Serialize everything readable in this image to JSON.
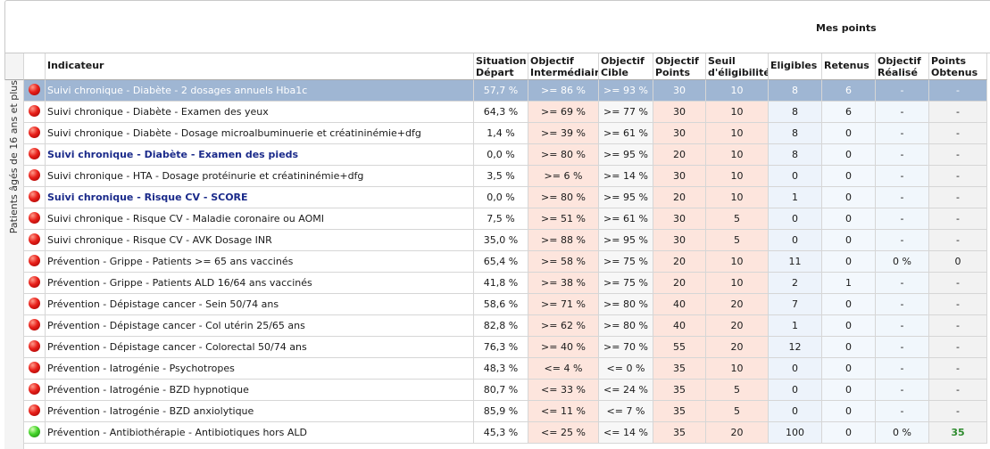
{
  "header": {
    "mes_points": "Mes points"
  },
  "columns": {
    "indicateur": "Indicateur",
    "situation": [
      "Situation",
      "Départ"
    ],
    "obj_inter": [
      "Objectif",
      "Intermédiaire"
    ],
    "obj_cible": [
      "Objectif",
      "Cible"
    ],
    "obj_points": [
      "Objectif",
      "Points"
    ],
    "seuil": [
      "Seuil",
      "d'éligibilité"
    ],
    "eligibles": "Eligibles",
    "retenus": "Retenus",
    "obj_realise": [
      "Objectif",
      "Réalisé"
    ],
    "points_obtenus": [
      "Points",
      "Obtenus"
    ]
  },
  "group_label": "Patients âgés de 16 ans et plus",
  "rows": [
    {
      "status": "red",
      "indicateur": "Suivi chronique - Diabète - 2 dosages annuels  Hba1c",
      "situation": "57,7 %",
      "inter": ">= 86 %",
      "cible": ">= 93 %",
      "points": "30",
      "seuil": "10",
      "eligibles": "8",
      "retenus": "6",
      "realise": "-",
      "obtenus": "-",
      "style": "selected"
    },
    {
      "status": "red",
      "indicateur": "Suivi chronique - Diabète - Examen des yeux",
      "situation": "64,3 %",
      "inter": ">= 69 %",
      "cible": ">= 77 %",
      "points": "30",
      "seuil": "10",
      "eligibles": "8",
      "retenus": "6",
      "realise": "-",
      "obtenus": "-",
      "style": ""
    },
    {
      "status": "red",
      "indicateur": "Suivi chronique - Diabète - Dosage microalbuminuerie et créatininémie+dfg",
      "situation": "1,4 %",
      "inter": ">= 39 %",
      "cible": ">= 61 %",
      "points": "30",
      "seuil": "10",
      "eligibles": "8",
      "retenus": "0",
      "realise": "-",
      "obtenus": "-",
      "style": ""
    },
    {
      "status": "red",
      "indicateur": "Suivi chronique - Diabète - Examen des pieds",
      "situation": "0,0 %",
      "inter": ">= 80 %",
      "cible": ">= 95 %",
      "points": "20",
      "seuil": "10",
      "eligibles": "8",
      "retenus": "0",
      "realise": "-",
      "obtenus": "-",
      "style": "bold"
    },
    {
      "status": "red",
      "indicateur": "Suivi chronique - HTA - Dosage protéinurie et créatininémie+dfg",
      "situation": "3,5 %",
      "inter": ">= 6 %",
      "cible": ">= 14 %",
      "points": "30",
      "seuil": "10",
      "eligibles": "0",
      "retenus": "0",
      "realise": "-",
      "obtenus": "-",
      "style": ""
    },
    {
      "status": "red",
      "indicateur": "Suivi chronique - Risque CV - SCORE",
      "situation": "0,0 %",
      "inter": ">= 80 %",
      "cible": ">= 95 %",
      "points": "20",
      "seuil": "10",
      "eligibles": "1",
      "retenus": "0",
      "realise": "-",
      "obtenus": "-",
      "style": "bold"
    },
    {
      "status": "red",
      "indicateur": "Suivi chronique - Risque CV - Maladie coronaire ou AOMI",
      "situation": "7,5 %",
      "inter": ">= 51 %",
      "cible": ">= 61 %",
      "points": "30",
      "seuil": "5",
      "eligibles": "0",
      "retenus": "0",
      "realise": "-",
      "obtenus": "-",
      "style": ""
    },
    {
      "status": "red",
      "indicateur": "Suivi chronique - Risque CV - AVK Dosage INR",
      "situation": "35,0 %",
      "inter": ">= 88 %",
      "cible": ">= 95 %",
      "points": "30",
      "seuil": "5",
      "eligibles": "0",
      "retenus": "0",
      "realise": "-",
      "obtenus": "-",
      "style": ""
    },
    {
      "status": "red",
      "indicateur": "Prévention - Grippe - Patients >= 65 ans vaccinés",
      "situation": "65,4 %",
      "inter": ">= 58 %",
      "cible": ">= 75 %",
      "points": "20",
      "seuil": "10",
      "eligibles": "11",
      "retenus": "0",
      "realise": "0 %",
      "obtenus": "0",
      "style": ""
    },
    {
      "status": "red",
      "indicateur": "Prévention - Grippe - Patients ALD 16/64 ans vaccinés",
      "situation": "41,8 %",
      "inter": ">= 38 %",
      "cible": ">= 75 %",
      "points": "20",
      "seuil": "10",
      "eligibles": "2",
      "retenus": "1",
      "realise": "-",
      "obtenus": "-",
      "style": ""
    },
    {
      "status": "red",
      "indicateur": "Prévention - Dépistage cancer - Sein 50/74 ans",
      "situation": "58,6 %",
      "inter": ">= 71 %",
      "cible": ">= 80 %",
      "points": "40",
      "seuil": "20",
      "eligibles": "7",
      "retenus": "0",
      "realise": "-",
      "obtenus": "-",
      "style": ""
    },
    {
      "status": "red",
      "indicateur": "Prévention - Dépistage cancer - Col utérin 25/65 ans",
      "situation": "82,8 %",
      "inter": ">= 62 %",
      "cible": ">= 80 %",
      "points": "40",
      "seuil": "20",
      "eligibles": "1",
      "retenus": "0",
      "realise": "-",
      "obtenus": "-",
      "style": ""
    },
    {
      "status": "red",
      "indicateur": "Prévention - Dépistage cancer - Colorectal 50/74 ans",
      "situation": "76,3 %",
      "inter": ">= 40 %",
      "cible": ">= 70 %",
      "points": "55",
      "seuil": "20",
      "eligibles": "12",
      "retenus": "0",
      "realise": "-",
      "obtenus": "-",
      "style": ""
    },
    {
      "status": "red",
      "indicateur": "Prévention - Iatrogénie - Psychotropes",
      "situation": "48,3 %",
      "inter": "<= 4 %",
      "cible": "<= 0 %",
      "points": "35",
      "seuil": "10",
      "eligibles": "0",
      "retenus": "0",
      "realise": "-",
      "obtenus": "-",
      "style": ""
    },
    {
      "status": "red",
      "indicateur": "Prévention - Iatrogénie - BZD hypnotique",
      "situation": "80,7 %",
      "inter": "<= 33 %",
      "cible": "<= 24 %",
      "points": "35",
      "seuil": "5",
      "eligibles": "0",
      "retenus": "0",
      "realise": "-",
      "obtenus": "-",
      "style": ""
    },
    {
      "status": "red",
      "indicateur": "Prévention - Iatrogénie - BZD anxiolytique",
      "situation": "85,9 %",
      "inter": "<= 11 %",
      "cible": "<= 7 %",
      "points": "35",
      "seuil": "5",
      "eligibles": "0",
      "retenus": "0",
      "realise": "-",
      "obtenus": "-",
      "style": ""
    },
    {
      "status": "green",
      "indicateur": "Prévention - Antibiothérapie - Antibiotiques hors ALD",
      "situation": "45,3 %",
      "inter": "<= 25 %",
      "cible": "<= 14 %",
      "points": "35",
      "seuil": "20",
      "eligibles": "100",
      "retenus": "0",
      "realise": "0 %",
      "obtenus": "35",
      "style": "green"
    }
  ]
}
